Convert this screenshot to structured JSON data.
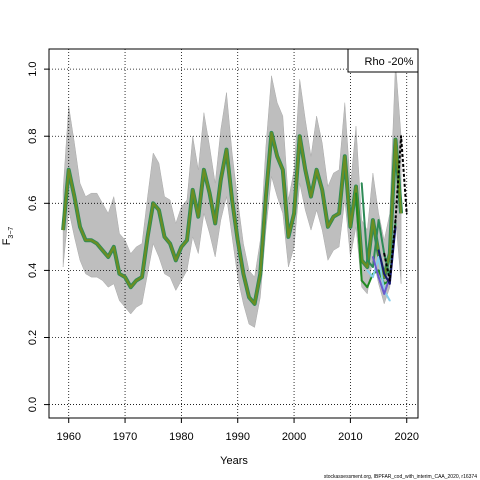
{
  "chart_data": {
    "type": "line",
    "xlabel": "Years",
    "ylabel": "F",
    "ylabel_sub": "3−7",
    "xlim": [
      1956.5,
      2022
    ],
    "ylim": [
      -0.04,
      1.06
    ],
    "x_ticks": [
      1960,
      1970,
      1980,
      1990,
      2000,
      2010,
      2020
    ],
    "y_ticks": [
      0.0,
      0.2,
      0.4,
      0.6,
      0.8,
      1.0
    ],
    "y_tick_labels": [
      "0.0",
      "0.2",
      "0.4",
      "0.6",
      "0.8",
      "1.0"
    ],
    "grid": true,
    "legend": {
      "position": "top-right",
      "text": "Rho -20%"
    },
    "footer": "stockassessment.org, IBPFAR_cod_with_interim_CAA_2020, r16374",
    "colors": {
      "band": "#bebebe",
      "estimate": "#6b8e23",
      "estimate_outline": "#2e8b57",
      "retro": [
        "#000000",
        "#228b22",
        "#2e8b57",
        "#87ceeb",
        "#6a5acd",
        "#191970",
        "#000000"
      ]
    },
    "series": [
      {
        "x": [
          1959,
          1960,
          1961,
          1962,
          1963,
          1964,
          1965,
          1966,
          1967,
          1968,
          1969,
          1970,
          1971,
          1972,
          1973,
          1974,
          1975,
          1976,
          1977,
          1978,
          1979,
          1980,
          1981,
          1982,
          1983,
          1984,
          1985,
          1986,
          1987,
          1988,
          1989,
          1990,
          1991,
          1992,
          1993,
          1994,
          1995,
          1996,
          1997,
          1998,
          1999,
          2000,
          2001,
          2002,
          2003,
          2004,
          2005,
          2006,
          2007,
          2008,
          2009,
          2010,
          2011,
          2012,
          2013,
          2014,
          2015,
          2016,
          2017,
          2018,
          2019
        ],
        "values": [
          0.52,
          0.7,
          0.62,
          0.53,
          0.49,
          0.49,
          0.48,
          0.46,
          0.44,
          0.47,
          0.39,
          0.38,
          0.35,
          0.37,
          0.38,
          0.5,
          0.6,
          0.58,
          0.5,
          0.48,
          0.43,
          0.47,
          0.49,
          0.64,
          0.56,
          0.7,
          0.63,
          0.54,
          0.67,
          0.76,
          0.61,
          0.49,
          0.39,
          0.32,
          0.3,
          0.39,
          0.62,
          0.81,
          0.74,
          0.7,
          0.5,
          0.57,
          0.8,
          0.7,
          0.62,
          0.7,
          0.64,
          0.53,
          0.56,
          0.57,
          0.74,
          0.53,
          0.65,
          0.43,
          0.41,
          0.55,
          0.45,
          0.38,
          0.45,
          0.79,
          0.57
        ],
        "lower": [
          0.41,
          0.58,
          0.5,
          0.43,
          0.39,
          0.38,
          0.38,
          0.37,
          0.35,
          0.36,
          0.31,
          0.29,
          0.27,
          0.29,
          0.3,
          0.39,
          0.48,
          0.44,
          0.39,
          0.38,
          0.34,
          0.37,
          0.4,
          0.5,
          0.45,
          0.57,
          0.51,
          0.44,
          0.55,
          0.62,
          0.5,
          0.38,
          0.3,
          0.24,
          0.23,
          0.32,
          0.52,
          0.68,
          0.62,
          0.57,
          0.41,
          0.47,
          0.66,
          0.58,
          0.52,
          0.58,
          0.52,
          0.43,
          0.46,
          0.47,
          0.61,
          0.44,
          0.53,
          0.35,
          0.33,
          0.44,
          0.36,
          0.3,
          0.35,
          0.56,
          0.36
        ],
        "upper": [
          0.64,
          0.89,
          0.78,
          0.66,
          0.62,
          0.63,
          0.63,
          0.6,
          0.57,
          0.62,
          0.51,
          0.49,
          0.45,
          0.47,
          0.48,
          0.62,
          0.75,
          0.72,
          0.62,
          0.61,
          0.54,
          0.59,
          0.61,
          0.8,
          0.7,
          0.87,
          0.77,
          0.66,
          0.82,
          0.93,
          0.75,
          0.61,
          0.48,
          0.4,
          0.38,
          0.49,
          0.77,
          0.98,
          0.9,
          0.86,
          0.61,
          0.7,
          0.97,
          0.85,
          0.74,
          0.86,
          0.78,
          0.65,
          0.69,
          0.7,
          0.9,
          0.65,
          0.83,
          0.55,
          0.52,
          0.69,
          0.57,
          0.49,
          0.57,
          1.02,
          0.8
        ]
      },
      {
        "x": [
          2011,
          2012,
          2013,
          2014,
          2015,
          2016,
          2017
        ],
        "values": [
          0.63,
          0.37,
          0.35,
          0.39,
          0.4,
          0.36,
          0.37
        ]
      },
      {
        "x": [
          2012,
          2013,
          2014,
          2015,
          2016,
          2017,
          2018
        ],
        "values": [
          0.66,
          0.43,
          0.41,
          0.55,
          0.45,
          0.38,
          0.54
        ]
      },
      {
        "x": [
          2013,
          2014,
          2015,
          2016,
          2017
        ],
        "values": [
          0.4,
          0.38,
          0.44,
          0.34,
          0.31
        ]
      },
      {
        "x": [
          2014,
          2015,
          2016,
          2017
        ],
        "values": [
          0.44,
          0.38,
          0.33,
          0.38
        ]
      },
      {
        "x": [
          2015,
          2016,
          2017,
          2018
        ],
        "values": [
          0.46,
          0.39,
          0.36,
          0.53
        ]
      },
      {
        "x": [
          2016,
          2017,
          2018,
          2019,
          2020
        ],
        "values": [
          0.45,
          0.37,
          0.55,
          0.8,
          0.57
        ]
      }
    ]
  }
}
